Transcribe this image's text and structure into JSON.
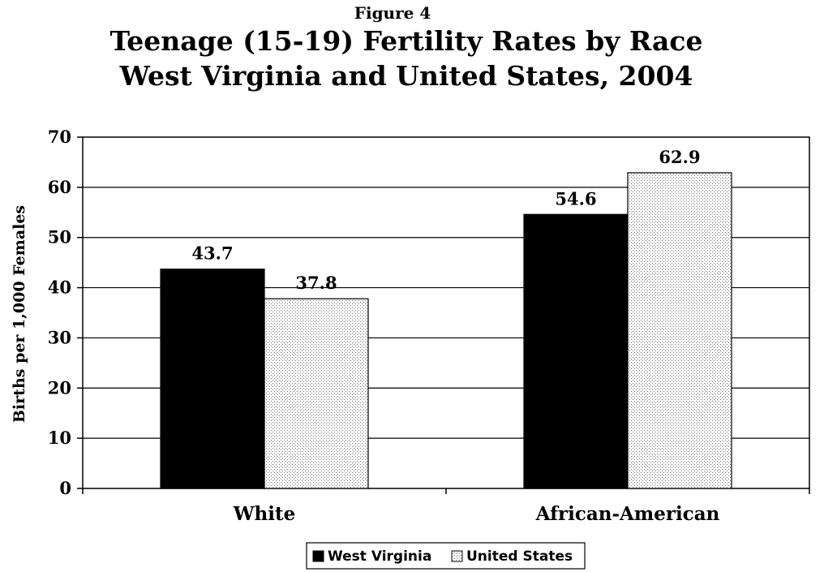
{
  "chart_data": {
    "type": "bar",
    "supertitle": "Figure 4",
    "title_lines": [
      "Teenage (15-19) Fertility Rates by Race",
      "West Virginia and United States, 2004"
    ],
    "ylabel": "Births per 1,000 Females",
    "xlabel": "",
    "categories": [
      "White",
      "African-American"
    ],
    "ylim": [
      0,
      70
    ],
    "yticks": [
      0,
      10,
      20,
      30,
      40,
      50,
      60,
      70
    ],
    "grid": true,
    "legend_position": "bottom",
    "series": [
      {
        "name": "West Virginia",
        "values": [
          43.7,
          54.6
        ],
        "data_labels": [
          "43.7",
          "54.6"
        ],
        "fill": "solid",
        "color": "#000000"
      },
      {
        "name": "United States",
        "values": [
          37.8,
          62.9
        ],
        "data_labels": [
          "37.8",
          "62.9"
        ],
        "fill": "dotted",
        "color": "#ffffff"
      }
    ]
  }
}
